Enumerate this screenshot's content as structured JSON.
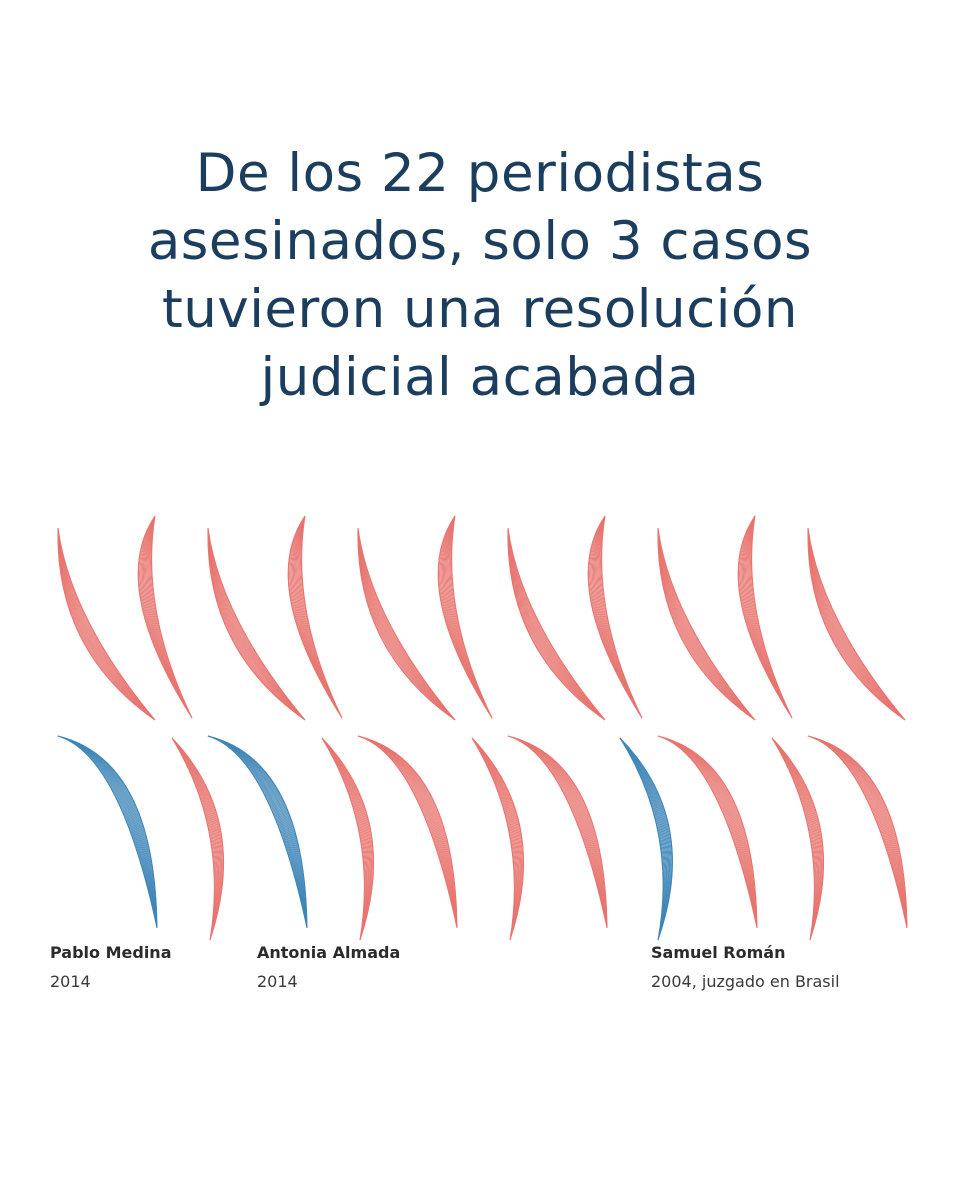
{
  "headline": {
    "lines": [
      "De los 22 periodistas",
      "asesinados, solo 3 casos",
      "tuvieron una resolución",
      "judicial acabada"
    ]
  },
  "journalists": {
    "total": 22,
    "resolved_count": 3
  },
  "colors": {
    "headline": "#1b3d5e",
    "unresolved": "#e8746f",
    "resolved": "#3f86b8",
    "label_text": "#2b2b2b"
  },
  "icons": {
    "unresolved": "red-blade-icon",
    "resolved": "blue-blade-icon"
  },
  "resolved_cases": [
    {
      "name": "Pablo Medina",
      "detail": "2014"
    },
    {
      "name": "Antonia Almada",
      "detail": "2014"
    },
    {
      "name": "Samuel Román",
      "detail": "2004, juzgado en Brasil"
    }
  ]
}
